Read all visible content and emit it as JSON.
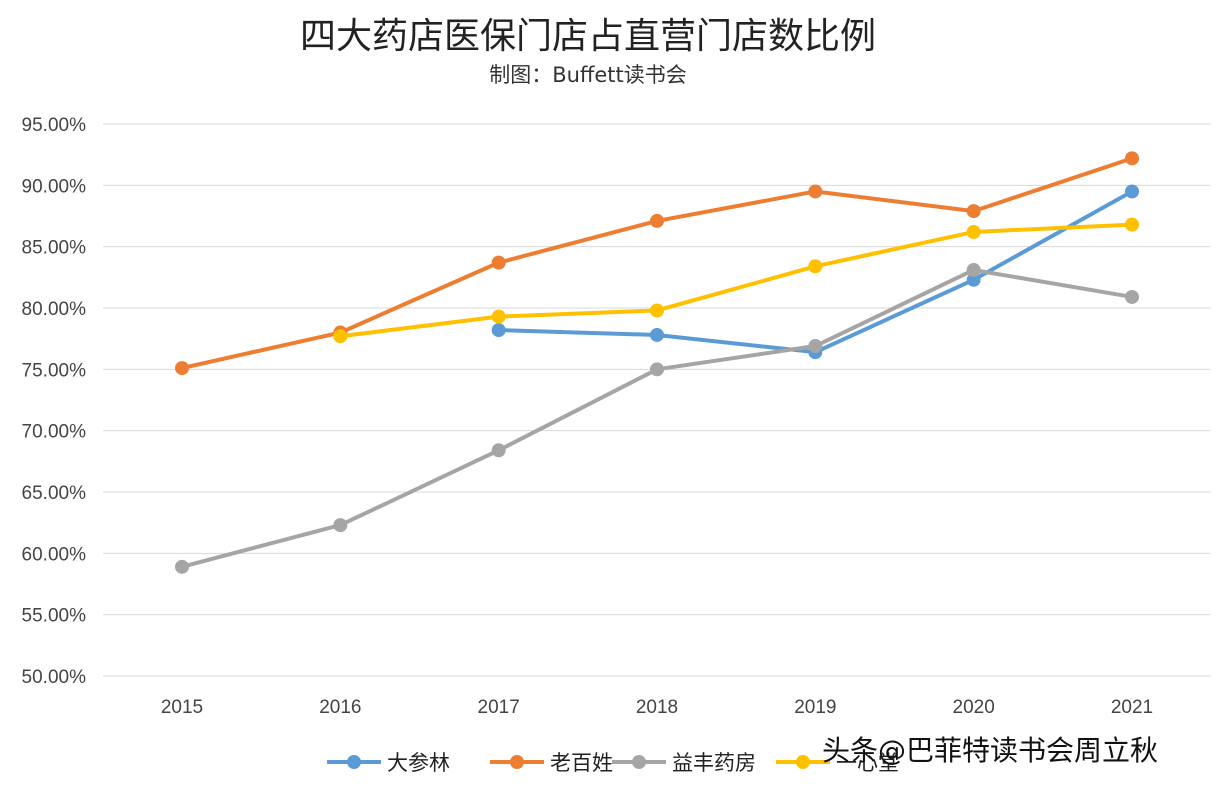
{
  "chart_data": {
    "type": "line",
    "title": "四大药店医保门店占直营门店数比例",
    "subtitle": "制图：Buffett读书会",
    "categories": [
      "2015",
      "2016",
      "2017",
      "2018",
      "2019",
      "2020",
      "2021"
    ],
    "ylim": [
      0.5,
      0.95
    ],
    "yticks": [
      "95.00%",
      "90.00%",
      "85.00%",
      "80.00%",
      "75.00%",
      "70.00%",
      "65.00%",
      "60.00%",
      "55.00%",
      "50.00%"
    ],
    "grid": true,
    "legend_position": "bottom",
    "series": [
      {
        "name": "大参林",
        "color": "#5B9BD5",
        "values": [
          null,
          null,
          0.782,
          0.778,
          0.764,
          0.823,
          0.895
        ]
      },
      {
        "name": "老百姓",
        "color": "#ED7D31",
        "values": [
          0.751,
          0.78,
          0.837,
          0.871,
          0.895,
          0.879,
          0.922
        ]
      },
      {
        "name": "益丰药房",
        "color": "#A5A5A5",
        "values": [
          0.589,
          0.623,
          0.684,
          0.75,
          0.769,
          0.831,
          0.809
        ]
      },
      {
        "name": "一心堂",
        "color": "#FFC000",
        "values": [
          null,
          0.777,
          0.793,
          0.798,
          0.834,
          0.862,
          0.868
        ]
      }
    ]
  },
  "watermark": "头条@巴菲特读书会周立秋"
}
